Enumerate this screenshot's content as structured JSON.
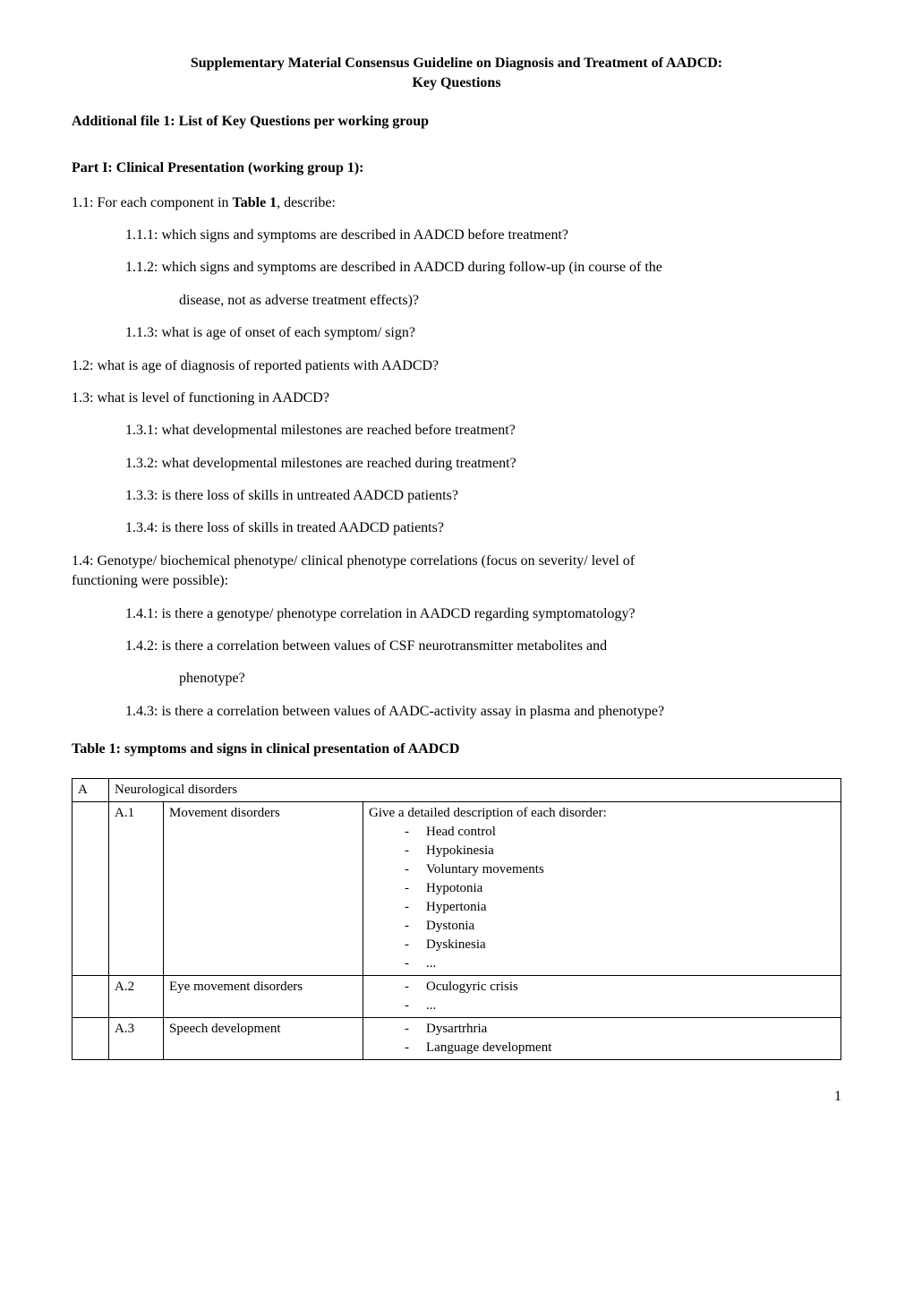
{
  "header": {
    "line1": "Supplementary Material Consensus Guideline on Diagnosis and Treatment of AADCD:",
    "line2": "Key Questions"
  },
  "additional_file": "Additional file 1: List of Key Questions per working group",
  "part1": {
    "heading": "Part I: Clinical Presentation (working group 1):",
    "q1_1_prefix": "1.1: For each component in ",
    "q1_1_bold": "Table 1",
    "q1_1_suffix": ", describe:",
    "q1_1_1": "1.1.1: which signs and symptoms are described in AADCD before treatment?",
    "q1_1_2": "1.1.2: which signs and symptoms are described in AADCD during follow-up (in course of the",
    "q1_1_2b": "disease, not as adverse treatment effects)?",
    "q1_1_3": "1.1.3: what is age of onset of each symptom/ sign?",
    "q1_2": "1.2: what is age of diagnosis of reported patients with AADCD?",
    "q1_3": "1.3: what is level of functioning in AADCD?",
    "q1_3_1": "1.3.1: what developmental milestones are reached before treatment?",
    "q1_3_2": "1.3.2: what developmental milestones are reached during treatment?",
    "q1_3_3": "1.3.3: is there loss of skills in untreated AADCD patients?",
    "q1_3_4": "1.3.4: is there loss of skills in treated AADCD patients?",
    "q1_4a": "1.4: Genotype/ biochemical phenotype/ clinical phenotype correlations (focus on severity/ level of",
    "q1_4b": "functioning were possible):",
    "q1_4_1": "1.4.1: is there a genotype/ phenotype correlation in AADCD regarding symptomatology?",
    "q1_4_2": "1.4.2: is there a correlation between values of CSF neurotransmitter metabolites and",
    "q1_4_2b": "phenotype?",
    "q1_4_3": "1.4.3: is there a correlation between values of AADC-activity assay in plasma and phenotype?"
  },
  "table1": {
    "caption": "Table 1: symptoms and signs in clinical presentation of AADCD",
    "sectionA": {
      "code": "A",
      "title": "Neurological disorders"
    },
    "rows": [
      {
        "code": "A.1",
        "label": "Movement disorders",
        "intro": "Give a detailed description of each disorder:",
        "items": [
          "Head control",
          "Hypokinesia",
          "Voluntary movements",
          "Hypotonia",
          "Hypertonia",
          "Dystonia",
          "Dyskinesia",
          "..."
        ]
      },
      {
        "code": "A.2",
        "label": "Eye movement disorders",
        "intro": "",
        "items": [
          "Oculogyric crisis",
          "..."
        ]
      },
      {
        "code": "A.3",
        "label": "Speech development",
        "intro": "",
        "items": [
          "Dysartrhria",
          "Language development"
        ]
      }
    ]
  },
  "page_number": "1"
}
